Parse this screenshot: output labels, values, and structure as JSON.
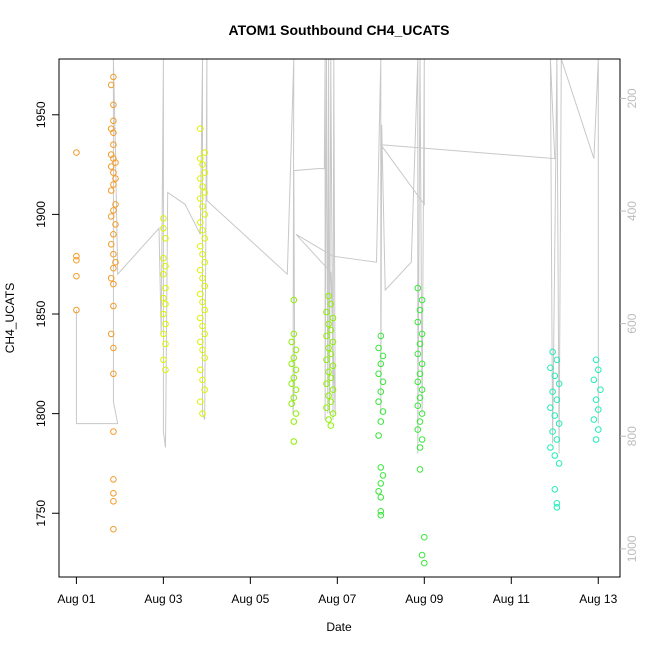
{
  "chart_data": {
    "type": "scatter",
    "title": "ATOM1 Southbound CH4_UCATS",
    "xlabel": "Date",
    "ylabel": "CH4_UCATS",
    "x_ticks": [
      "Aug 01",
      "Aug 03",
      "Aug 05",
      "Aug 07",
      "Aug 09",
      "Aug 11",
      "Aug 13"
    ],
    "y_ticks": [
      "1750",
      "1800",
      "1850",
      "1900",
      "1950"
    ],
    "y2_ticks": [
      "200",
      "400",
      "600",
      "800",
      "1000"
    ],
    "xlim_days": [
      0.6,
      13.5
    ],
    "ylim": [
      1718,
      1978
    ],
    "y2lim": [
      1050,
      130
    ],
    "grid": false,
    "legend": "none",
    "colors": {
      "orange": "#f39c2a",
      "yellow": "#dcf400",
      "lime": "#8ef000",
      "green": "#39e63a",
      "teal": "#22ecb8",
      "pressure_line": "#c8c8c8"
    },
    "series": [
      {
        "color": "orange",
        "points": [
          [
            1.0,
            1931
          ],
          [
            1.0,
            1879
          ],
          [
            1.0,
            1877
          ],
          [
            1.0,
            1869
          ],
          [
            1.0,
            1852
          ],
          [
            1.85,
            1969
          ],
          [
            1.8,
            1965
          ],
          [
            1.85,
            1955
          ],
          [
            1.85,
            1947
          ],
          [
            1.8,
            1943
          ],
          [
            1.85,
            1941
          ],
          [
            1.85,
            1935
          ],
          [
            1.8,
            1930
          ],
          [
            1.85,
            1928
          ],
          [
            1.9,
            1926
          ],
          [
            1.8,
            1924
          ],
          [
            1.85,
            1921
          ],
          [
            1.9,
            1918
          ],
          [
            1.85,
            1915
          ],
          [
            1.8,
            1912
          ],
          [
            1.9,
            1905
          ],
          [
            1.85,
            1902
          ],
          [
            1.8,
            1899
          ],
          [
            1.9,
            1895
          ],
          [
            1.85,
            1890
          ],
          [
            1.8,
            1885
          ],
          [
            1.85,
            1880
          ],
          [
            1.9,
            1876
          ],
          [
            1.85,
            1873
          ],
          [
            1.8,
            1868
          ],
          [
            1.85,
            1865
          ],
          [
            1.85,
            1854
          ],
          [
            1.8,
            1840
          ],
          [
            1.85,
            1833
          ],
          [
            1.85,
            1820
          ],
          [
            1.85,
            1791
          ],
          [
            1.85,
            1767
          ],
          [
            1.85,
            1760
          ],
          [
            1.85,
            1756
          ],
          [
            1.85,
            1742
          ]
        ]
      },
      {
        "color": "yellow",
        "points": [
          [
            3.0,
            1898
          ],
          [
            3.0,
            1893
          ],
          [
            3.05,
            1888
          ],
          [
            3.0,
            1878
          ],
          [
            3.05,
            1874
          ],
          [
            3.0,
            1870
          ],
          [
            3.05,
            1863
          ],
          [
            3.0,
            1858
          ],
          [
            3.05,
            1855
          ],
          [
            3.0,
            1850
          ],
          [
            3.05,
            1845
          ],
          [
            3.0,
            1840
          ],
          [
            3.05,
            1835
          ],
          [
            3.0,
            1827
          ],
          [
            3.05,
            1822
          ],
          [
            3.85,
            1943
          ],
          [
            3.95,
            1931
          ],
          [
            3.85,
            1928
          ],
          [
            3.9,
            1925
          ],
          [
            3.95,
            1921
          ],
          [
            3.85,
            1918
          ],
          [
            3.9,
            1914
          ],
          [
            3.95,
            1911
          ],
          [
            3.85,
            1908
          ],
          [
            3.9,
            1904
          ],
          [
            3.95,
            1900
          ],
          [
            3.85,
            1896
          ],
          [
            3.9,
            1892
          ],
          [
            3.95,
            1888
          ],
          [
            3.85,
            1884
          ],
          [
            3.9,
            1880
          ],
          [
            3.95,
            1876
          ],
          [
            3.85,
            1872
          ],
          [
            3.9,
            1868
          ],
          [
            3.95,
            1864
          ],
          [
            3.85,
            1860
          ],
          [
            3.9,
            1856
          ],
          [
            3.95,
            1852
          ],
          [
            3.85,
            1848
          ],
          [
            3.9,
            1844
          ],
          [
            3.95,
            1840
          ],
          [
            3.85,
            1836
          ],
          [
            3.9,
            1832
          ],
          [
            3.95,
            1828
          ],
          [
            3.85,
            1822
          ],
          [
            3.9,
            1817
          ],
          [
            3.95,
            1812
          ],
          [
            3.85,
            1806
          ],
          [
            3.9,
            1800
          ]
        ]
      },
      {
        "color": "lime",
        "points": [
          [
            6.0,
            1857
          ],
          [
            6.0,
            1840
          ],
          [
            5.95,
            1836
          ],
          [
            6.05,
            1832
          ],
          [
            6.0,
            1828
          ],
          [
            5.95,
            1825
          ],
          [
            6.05,
            1822
          ],
          [
            6.0,
            1818
          ],
          [
            5.95,
            1815
          ],
          [
            6.05,
            1812
          ],
          [
            6.0,
            1808
          ],
          [
            5.95,
            1805
          ],
          [
            6.05,
            1800
          ],
          [
            6.0,
            1796
          ],
          [
            6.0,
            1786
          ],
          [
            6.8,
            1859
          ],
          [
            6.85,
            1855
          ],
          [
            6.75,
            1851
          ],
          [
            6.9,
            1848
          ],
          [
            6.8,
            1845
          ],
          [
            6.85,
            1842
          ],
          [
            6.75,
            1839
          ],
          [
            6.9,
            1836
          ],
          [
            6.8,
            1833
          ],
          [
            6.85,
            1830
          ],
          [
            6.75,
            1827
          ],
          [
            6.9,
            1824
          ],
          [
            6.8,
            1821
          ],
          [
            6.85,
            1818
          ],
          [
            6.75,
            1815
          ],
          [
            6.9,
            1812
          ],
          [
            6.8,
            1809
          ],
          [
            6.85,
            1806
          ],
          [
            6.75,
            1803
          ],
          [
            6.9,
            1800
          ],
          [
            6.8,
            1797
          ],
          [
            6.85,
            1794
          ]
        ]
      },
      {
        "color": "green",
        "points": [
          [
            8.0,
            1839
          ],
          [
            7.95,
            1833
          ],
          [
            8.05,
            1829
          ],
          [
            8.0,
            1825
          ],
          [
            7.95,
            1820
          ],
          [
            8.05,
            1816
          ],
          [
            8.0,
            1811
          ],
          [
            7.95,
            1806
          ],
          [
            8.05,
            1801
          ],
          [
            8.0,
            1796
          ],
          [
            7.95,
            1789
          ],
          [
            8.0,
            1773
          ],
          [
            8.05,
            1769
          ],
          [
            8.0,
            1765
          ],
          [
            7.95,
            1761
          ],
          [
            8.0,
            1758
          ],
          [
            8.0,
            1751
          ],
          [
            8.0,
            1749
          ],
          [
            8.85,
            1863
          ],
          [
            8.95,
            1857
          ],
          [
            8.9,
            1852
          ],
          [
            8.85,
            1846
          ],
          [
            8.95,
            1840
          ],
          [
            8.9,
            1835
          ],
          [
            8.85,
            1830
          ],
          [
            8.95,
            1825
          ],
          [
            8.9,
            1820
          ],
          [
            8.85,
            1816
          ],
          [
            8.95,
            1812
          ],
          [
            8.9,
            1808
          ],
          [
            8.85,
            1804
          ],
          [
            8.95,
            1800
          ],
          [
            8.9,
            1796
          ],
          [
            8.85,
            1792
          ],
          [
            8.95,
            1787
          ],
          [
            8.9,
            1783
          ],
          [
            8.9,
            1772
          ],
          [
            9.0,
            1738
          ],
          [
            8.95,
            1729
          ],
          [
            9.0,
            1725
          ]
        ]
      },
      {
        "color": "teal",
        "points": [
          [
            11.95,
            1831
          ],
          [
            12.05,
            1827
          ],
          [
            11.9,
            1823
          ],
          [
            12.0,
            1819
          ],
          [
            12.1,
            1815
          ],
          [
            11.95,
            1811
          ],
          [
            12.05,
            1807
          ],
          [
            11.9,
            1803
          ],
          [
            12.0,
            1799
          ],
          [
            12.1,
            1795
          ],
          [
            11.95,
            1791
          ],
          [
            12.05,
            1787
          ],
          [
            11.9,
            1783
          ],
          [
            12.0,
            1779
          ],
          [
            12.1,
            1775
          ],
          [
            12.0,
            1762
          ],
          [
            12.05,
            1755
          ],
          [
            12.05,
            1753
          ],
          [
            12.95,
            1827
          ],
          [
            13.0,
            1822
          ],
          [
            12.9,
            1817
          ],
          [
            13.05,
            1812
          ],
          [
            12.95,
            1807
          ],
          [
            13.0,
            1802
          ],
          [
            12.9,
            1797
          ],
          [
            13.0,
            1792
          ],
          [
            12.95,
            1787
          ]
        ]
      }
    ],
    "pressure_path": [
      [
        1.0,
        1852
      ],
      [
        1.0,
        1795
      ],
      [
        1.95,
        1795
      ],
      [
        1.85,
        1806
      ],
      [
        1.85,
        1978
      ],
      [
        1.9,
        1930
      ],
      [
        1.95,
        1870
      ],
      [
        2.9,
        1893
      ],
      [
        2.95,
        1840
      ],
      [
        3.0,
        1978
      ],
      [
        3.0,
        1791
      ],
      [
        3.05,
        1783
      ],
      [
        3.1,
        1911
      ],
      [
        3.5,
        1905
      ],
      [
        3.85,
        1890
      ],
      [
        3.9,
        1978
      ],
      [
        3.9,
        1800
      ],
      [
        3.95,
        1797
      ],
      [
        4.0,
        1978
      ],
      [
        4.0,
        1907
      ],
      [
        5.85,
        1870
      ],
      [
        6.0,
        1978
      ],
      [
        5.98,
        1800
      ],
      [
        6.02,
        1820
      ],
      [
        6.0,
        1922
      ],
      [
        6.55,
        1923
      ],
      [
        6.7,
        1923
      ],
      [
        6.72,
        1978
      ],
      [
        6.72,
        1797
      ],
      [
        6.75,
        1978
      ],
      [
        6.78,
        1800
      ],
      [
        6.8,
        1978
      ],
      [
        6.82,
        1800
      ],
      [
        6.85,
        1978
      ],
      [
        6.9,
        1797
      ],
      [
        6.92,
        1978
      ],
      [
        6.95,
        1800
      ],
      [
        6.85,
        1871
      ],
      [
        6.05,
        1890
      ],
      [
        6.9,
        1879
      ],
      [
        7.9,
        1876
      ],
      [
        8.0,
        1978
      ],
      [
        8.0,
        1800
      ],
      [
        8.02,
        1945
      ],
      [
        8.1,
        1862
      ],
      [
        8.7,
        1876
      ],
      [
        8.85,
        1978
      ],
      [
        8.85,
        1780
      ],
      [
        8.9,
        1978
      ],
      [
        8.95,
        1800
      ],
      [
        9.0,
        1978
      ],
      [
        9.0,
        1905
      ],
      [
        8.0,
        1935
      ],
      [
        12.0,
        1928
      ],
      [
        11.9,
        1978
      ],
      [
        11.95,
        1785
      ],
      [
        12.05,
        1978
      ],
      [
        12.1,
        1780
      ],
      [
        12.15,
        1978
      ],
      [
        12.9,
        1928
      ],
      [
        13.0,
        1978
      ],
      [
        13.0,
        1795
      ]
    ]
  }
}
